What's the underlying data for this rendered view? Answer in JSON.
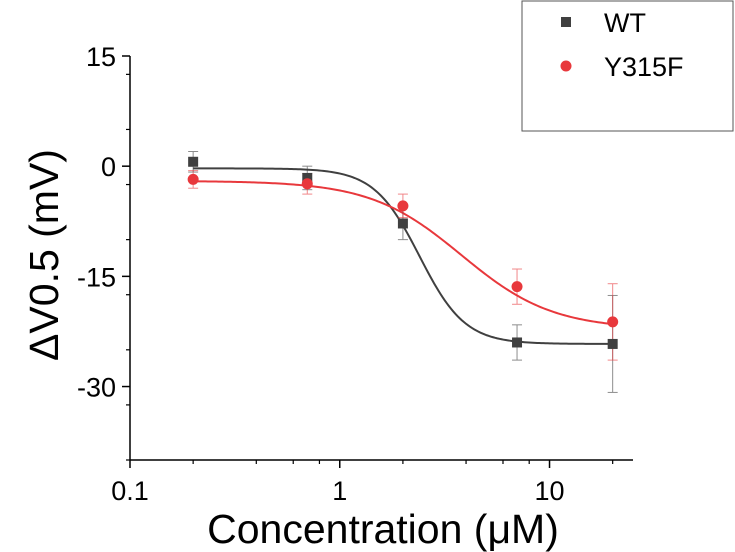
{
  "chart_data": {
    "type": "scatter",
    "title": "",
    "xlabel": "Concentration (μM)",
    "ylabel": "ΔV0.5 (mV)",
    "x_scale": "log",
    "xlim": [
      0.1,
      25
    ],
    "ylim": [
      -40,
      15
    ],
    "x_ticks": [
      0.1,
      1,
      10
    ],
    "x_tick_labels": [
      "0.1",
      "1",
      "10"
    ],
    "y_ticks": [
      15,
      0,
      -15,
      -30
    ],
    "y_tick_labels": [
      "15",
      "0",
      "-15",
      "-30"
    ],
    "grid": false,
    "legend_position": "top-right",
    "series": [
      {
        "name": "WT",
        "color": "#404040",
        "marker": "square",
        "x": [
          0.2,
          0.7,
          2,
          7,
          20
        ],
        "y": [
          0.6,
          -1.6,
          -7.8,
          -24.0,
          -24.2
        ],
        "err": [
          1.4,
          1.6,
          2.2,
          2.4,
          6.6
        ],
        "fit": {
          "top": -0.3,
          "bottom": -24.2,
          "ec50": 2.4,
          "hill": 4.0
        }
      },
      {
        "name": "Y315F",
        "color": "#e8383c",
        "marker": "circle",
        "x": [
          0.2,
          0.7,
          2,
          7,
          20
        ],
        "y": [
          -1.8,
          -2.4,
          -5.4,
          -16.4,
          -21.2
        ],
        "err": [
          1.2,
          1.4,
          1.6,
          2.4,
          5.2
        ],
        "fit": {
          "top": -2.0,
          "bottom": -22.2,
          "ec50": 3.8,
          "hill": 2.0
        }
      }
    ]
  }
}
